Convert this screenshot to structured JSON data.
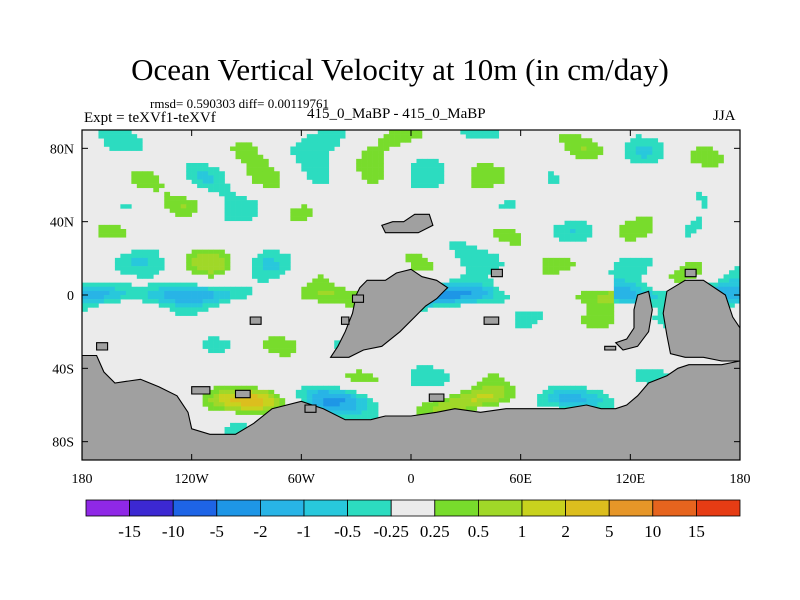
{
  "title": "Ocean Vertical Velocity at 10m (in cm/day)",
  "stats": "rmsd= 0.590303 diff= 0.00119761",
  "experiment": "Expt = teXVf1-teXVf",
  "case": "415_0_MaBP - 415_0_MaBP",
  "season": "JJA",
  "chart_data": {
    "type": "heatmap",
    "variable": "Ocean Vertical Velocity at 10m",
    "units": "cm/day",
    "xlim": [
      -180,
      180
    ],
    "ylim": [
      -90,
      90
    ],
    "x_ticks": [
      {
        "value": -180,
        "label": "180"
      },
      {
        "value": -120,
        "label": "120W"
      },
      {
        "value": -60,
        "label": "60W"
      },
      {
        "value": 0,
        "label": "0"
      },
      {
        "value": 60,
        "label": "60E"
      },
      {
        "value": 120,
        "label": "120E"
      },
      {
        "value": 180,
        "label": "180"
      }
    ],
    "y_ticks": [
      {
        "value": 80,
        "label": "80N"
      },
      {
        "value": 40,
        "label": "40N"
      },
      {
        "value": 0,
        "label": "0"
      },
      {
        "value": -40,
        "label": "40S"
      },
      {
        "value": -80,
        "label": "80S"
      }
    ],
    "colorbar": {
      "labels": [
        "-15",
        "-10",
        "-5",
        "-2",
        "-1",
        "-0.5",
        "-0.25",
        "0.25",
        "0.5",
        "1",
        "2",
        "5",
        "10",
        "15"
      ],
      "colors": [
        "#8f28e6",
        "#3c28d2",
        "#1e64e6",
        "#1e96e6",
        "#28b4e6",
        "#28c8dc",
        "#2cdcc0",
        "#ebebeb",
        "#78dc2c",
        "#a0d828",
        "#c8d21e",
        "#dcbe1e",
        "#e69628",
        "#e6641e",
        "#e63c14"
      ]
    },
    "land_color": "#a0a0a0"
  }
}
